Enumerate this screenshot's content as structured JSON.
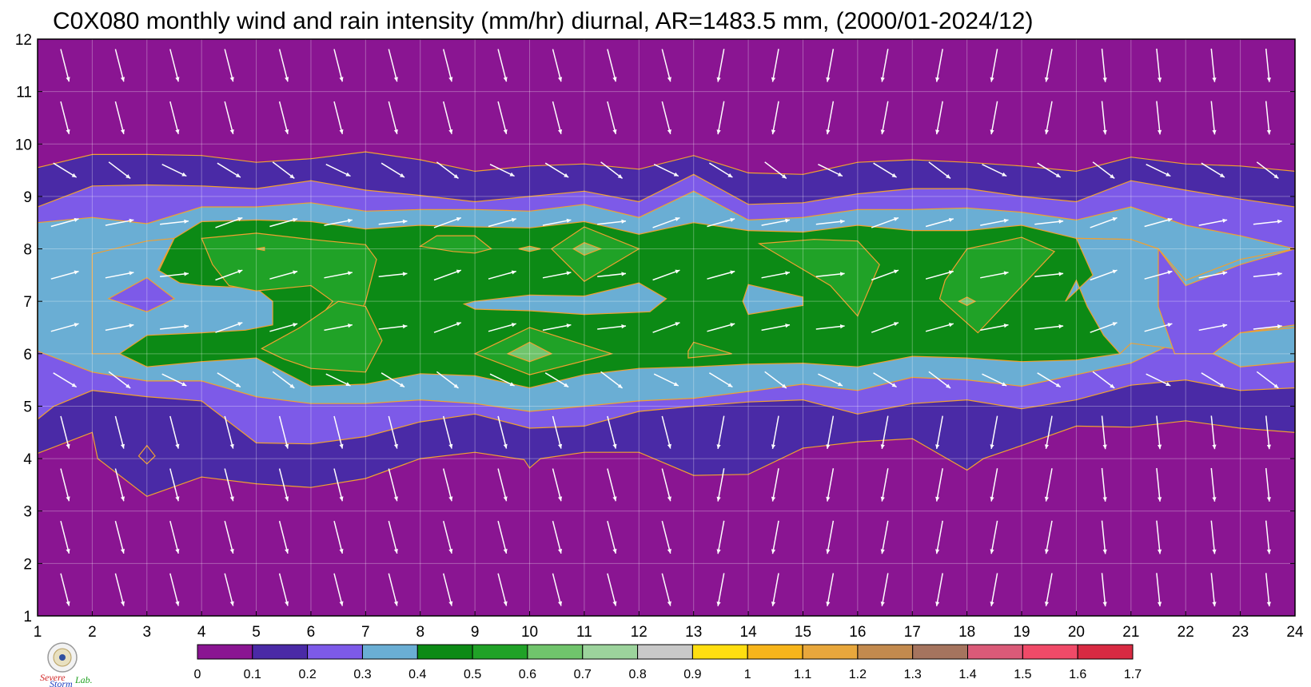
{
  "title": "C0X080 monthly wind and rain intensity (mm/hr) diurnal, AR=1483.5 mm, (2000/01-2024/12)",
  "chart_data": {
    "type": "heatmap",
    "title": "C0X080 monthly wind and rain intensity (mm/hr) diurnal, AR=1483.5 mm, (2000/01-2024/12)",
    "xlabel": "",
    "ylabel": "",
    "xlim": [
      1,
      24
    ],
    "ylim": [
      1,
      12
    ],
    "x_ticks": [
      "1",
      "2",
      "3",
      "4",
      "5",
      "6",
      "7",
      "8",
      "9",
      "10",
      "11",
      "12",
      "13",
      "14",
      "15",
      "16",
      "17",
      "18",
      "19",
      "20",
      "21",
      "22",
      "23",
      "24"
    ],
    "y_ticks": [
      "1",
      "2",
      "3",
      "4",
      "5",
      "6",
      "7",
      "8",
      "9",
      "10",
      "11",
      "12"
    ],
    "grid": true,
    "background_value": 0.05,
    "contour_levels": [
      0.1,
      0.2,
      0.3,
      0.4,
      0.5,
      0.6,
      0.7
    ],
    "contour_line_color": "#f0a030",
    "level_boundaries": [
      {
        "level": 0.1,
        "upper": [
          [
            1,
            9.55
          ],
          [
            2,
            9.8
          ],
          [
            3,
            9.8
          ],
          [
            4,
            9.78
          ],
          [
            5,
            9.65
          ],
          [
            6,
            9.72
          ],
          [
            7,
            9.85
          ],
          [
            8,
            9.7
          ],
          [
            9,
            9.48
          ],
          [
            10,
            9.58
          ],
          [
            11,
            9.62
          ],
          [
            12,
            9.52
          ],
          [
            13,
            9.78
          ],
          [
            14,
            9.45
          ],
          [
            15,
            9.42
          ],
          [
            16,
            9.65
          ],
          [
            17,
            9.7
          ],
          [
            18,
            9.65
          ],
          [
            19,
            9.58
          ],
          [
            20,
            9.48
          ],
          [
            21,
            9.75
          ],
          [
            22,
            9.62
          ],
          [
            23,
            9.58
          ],
          [
            24,
            9.48
          ]
        ],
        "lower": [
          [
            1,
            4.1
          ],
          [
            2,
            4.5
          ],
          [
            2.1,
            4.0
          ],
          [
            3,
            3.28
          ],
          [
            4,
            3.65
          ],
          [
            5,
            3.52
          ],
          [
            6,
            3.45
          ],
          [
            7,
            3.62
          ],
          [
            8,
            4.0
          ],
          [
            9,
            4.12
          ],
          [
            9.9,
            3.98
          ],
          [
            10,
            3.82
          ],
          [
            10.2,
            4.0
          ],
          [
            11,
            4.12
          ],
          [
            12,
            4.12
          ],
          [
            13,
            3.68
          ],
          [
            14,
            3.7
          ],
          [
            15,
            4.2
          ],
          [
            16,
            4.32
          ],
          [
            17,
            4.38
          ],
          [
            18,
            3.78
          ],
          [
            18.3,
            4.0
          ],
          [
            19,
            4.25
          ],
          [
            20,
            4.62
          ],
          [
            21,
            4.6
          ],
          [
            22,
            4.72
          ],
          [
            23,
            4.58
          ],
          [
            24,
            4.5
          ]
        ]
      },
      {
        "level": 0.2,
        "upper": [
          [
            1,
            8.8
          ],
          [
            2,
            9.2
          ],
          [
            3,
            9.22
          ],
          [
            4,
            9.2
          ],
          [
            5,
            9.15
          ],
          [
            6,
            9.3
          ],
          [
            7,
            9.12
          ],
          [
            8,
            9.02
          ],
          [
            9,
            8.9
          ],
          [
            10,
            9.0
          ],
          [
            11,
            9.1
          ],
          [
            12,
            8.9
          ],
          [
            13,
            9.42
          ],
          [
            14,
            8.85
          ],
          [
            15,
            8.88
          ],
          [
            16,
            9.05
          ],
          [
            17,
            9.15
          ],
          [
            18,
            9.15
          ],
          [
            19,
            9.0
          ],
          [
            20,
            8.9
          ],
          [
            21,
            9.3
          ],
          [
            22,
            9.12
          ],
          [
            23,
            8.95
          ],
          [
            24,
            8.8
          ]
        ],
        "lower": [
          [
            1,
            4.75
          ],
          [
            1.3,
            5.0
          ],
          [
            2,
            5.3
          ],
          [
            3,
            5.18
          ],
          [
            4,
            5.1
          ],
          [
            5,
            4.3
          ],
          [
            6,
            4.28
          ],
          [
            7,
            4.42
          ],
          [
            8,
            4.7
          ],
          [
            9,
            4.85
          ],
          [
            10,
            4.58
          ],
          [
            11,
            4.62
          ],
          [
            12,
            4.9
          ],
          [
            13,
            5.0
          ],
          [
            14,
            5.08
          ],
          [
            15,
            5.12
          ],
          [
            16,
            4.85
          ],
          [
            17,
            5.05
          ],
          [
            18,
            5.12
          ],
          [
            19,
            4.95
          ],
          [
            20,
            5.12
          ],
          [
            21,
            5.4
          ],
          [
            22,
            5.5
          ],
          [
            23,
            5.3
          ],
          [
            24,
            5.35
          ]
        ]
      },
      {
        "level": 0.3,
        "upper": [
          [
            1,
            8.5
          ],
          [
            2,
            8.6
          ],
          [
            3,
            8.48
          ],
          [
            4,
            8.8
          ],
          [
            5,
            8.8
          ],
          [
            6,
            8.88
          ],
          [
            7,
            8.72
          ],
          [
            8,
            8.75
          ],
          [
            9,
            8.75
          ],
          [
            10,
            8.72
          ],
          [
            11,
            8.85
          ],
          [
            12,
            8.6
          ],
          [
            13,
            9.1
          ],
          [
            14,
            8.55
          ],
          [
            15,
            8.6
          ],
          [
            16,
            8.75
          ],
          [
            17,
            8.75
          ],
          [
            18,
            8.78
          ],
          [
            19,
            8.7
          ],
          [
            20,
            8.55
          ],
          [
            21,
            8.8
          ],
          [
            22,
            8.45
          ],
          [
            23,
            8.25
          ],
          [
            24,
            8.0
          ]
        ],
        "lower": [
          [
            1,
            6.05
          ],
          [
            2,
            5.65
          ],
          [
            3,
            5.48
          ],
          [
            4,
            5.48
          ],
          [
            5,
            5.18
          ],
          [
            6,
            5.05
          ],
          [
            7,
            5.05
          ],
          [
            8,
            5.12
          ],
          [
            9,
            5.05
          ],
          [
            10,
            4.9
          ],
          [
            11,
            5.0
          ],
          [
            12,
            5.1
          ],
          [
            13,
            5.15
          ],
          [
            14,
            5.28
          ],
          [
            15,
            5.42
          ],
          [
            16,
            5.3
          ],
          [
            17,
            5.55
          ],
          [
            18,
            5.5
          ],
          [
            19,
            5.38
          ],
          [
            20,
            5.6
          ],
          [
            21,
            5.82
          ],
          [
            22,
            6.3
          ],
          [
            23,
            6.25
          ],
          [
            24,
            6.5
          ]
        ]
      },
      {
        "level": 0.4,
        "upper": [
          [
            3.5,
            8.2
          ],
          [
            4,
            8.52
          ],
          [
            5,
            8.55
          ],
          [
            6,
            8.52
          ],
          [
            7,
            8.38
          ],
          [
            8,
            8.45
          ],
          [
            9,
            8.42
          ],
          [
            10,
            8.4
          ],
          [
            11,
            8.52
          ],
          [
            12,
            8.28
          ],
          [
            13,
            8.5
          ],
          [
            14,
            8.35
          ],
          [
            15,
            8.32
          ],
          [
            16,
            8.45
          ],
          [
            17,
            8.35
          ],
          [
            18,
            8.35
          ],
          [
            19,
            8.45
          ],
          [
            20,
            8.2
          ],
          [
            21,
            8.18
          ],
          [
            21.5,
            8.0
          ]
        ],
        "lower": [
          [
            2.5,
            6.0
          ],
          [
            3,
            5.75
          ],
          [
            4,
            5.85
          ],
          [
            5,
            5.92
          ],
          [
            6,
            5.38
          ],
          [
            7,
            5.42
          ],
          [
            8,
            5.62
          ],
          [
            9,
            5.58
          ],
          [
            10,
            5.35
          ],
          [
            11,
            5.6
          ],
          [
            12,
            5.72
          ],
          [
            13,
            5.75
          ],
          [
            14,
            5.8
          ],
          [
            15,
            5.82
          ],
          [
            16,
            5.75
          ],
          [
            17,
            5.95
          ],
          [
            18,
            5.92
          ],
          [
            19,
            5.85
          ],
          [
            20,
            5.88
          ],
          [
            20.8,
            6.0
          ]
        ]
      }
    ],
    "wind_field": {
      "x": [
        1,
        2,
        3,
        4,
        5,
        6,
        7,
        8,
        9,
        10,
        11,
        12,
        13,
        14,
        15,
        16,
        17,
        18,
        19,
        20,
        21,
        22,
        23,
        24
      ],
      "y": [
        1.5,
        2.5,
        3.5,
        4.5,
        5.5,
        6.5,
        7.5,
        8.5,
        9.5,
        10.5,
        11.5
      ],
      "direction": "mostly southward (from north) at months 1-4 and 10-12, eastward/north-eastward at months 5-9"
    }
  },
  "colorbar": {
    "ticks": [
      "0",
      "0.1",
      "0.2",
      "0.3",
      "0.4",
      "0.5",
      "0.6",
      "0.7",
      "0.8",
      "0.9",
      "1",
      "1.1",
      "1.2",
      "1.3",
      "1.4",
      "1.5",
      "1.6",
      "1.7"
    ],
    "colors": [
      "#8a1592",
      "#4a2aa6",
      "#7d5ae8",
      "#6aaed4",
      "#0c8a15",
      "#20a227",
      "#70c46c",
      "#9cd39c",
      "#c8c8c8",
      "#ffde10",
      "#f7b51b",
      "#e8a73c",
      "#c38a4e",
      "#a5745e",
      "#da5a78",
      "#f04a68",
      "#d82a42"
    ]
  },
  "logo": {
    "line1": "Severe",
    "line2": "Storm",
    "line3": "Lab."
  }
}
